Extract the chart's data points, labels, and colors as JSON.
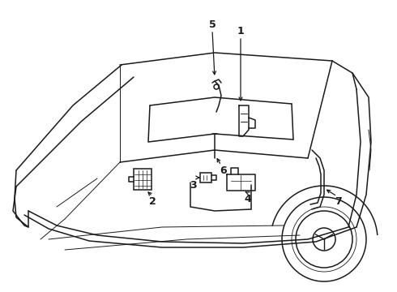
{
  "background_color": "#ffffff",
  "line_color": "#1a1a1a",
  "lw": 1.1,
  "tlw": 0.7,
  "label_fontsize": 9,
  "dpi": 100,
  "figsize": [
    4.9,
    3.6
  ]
}
